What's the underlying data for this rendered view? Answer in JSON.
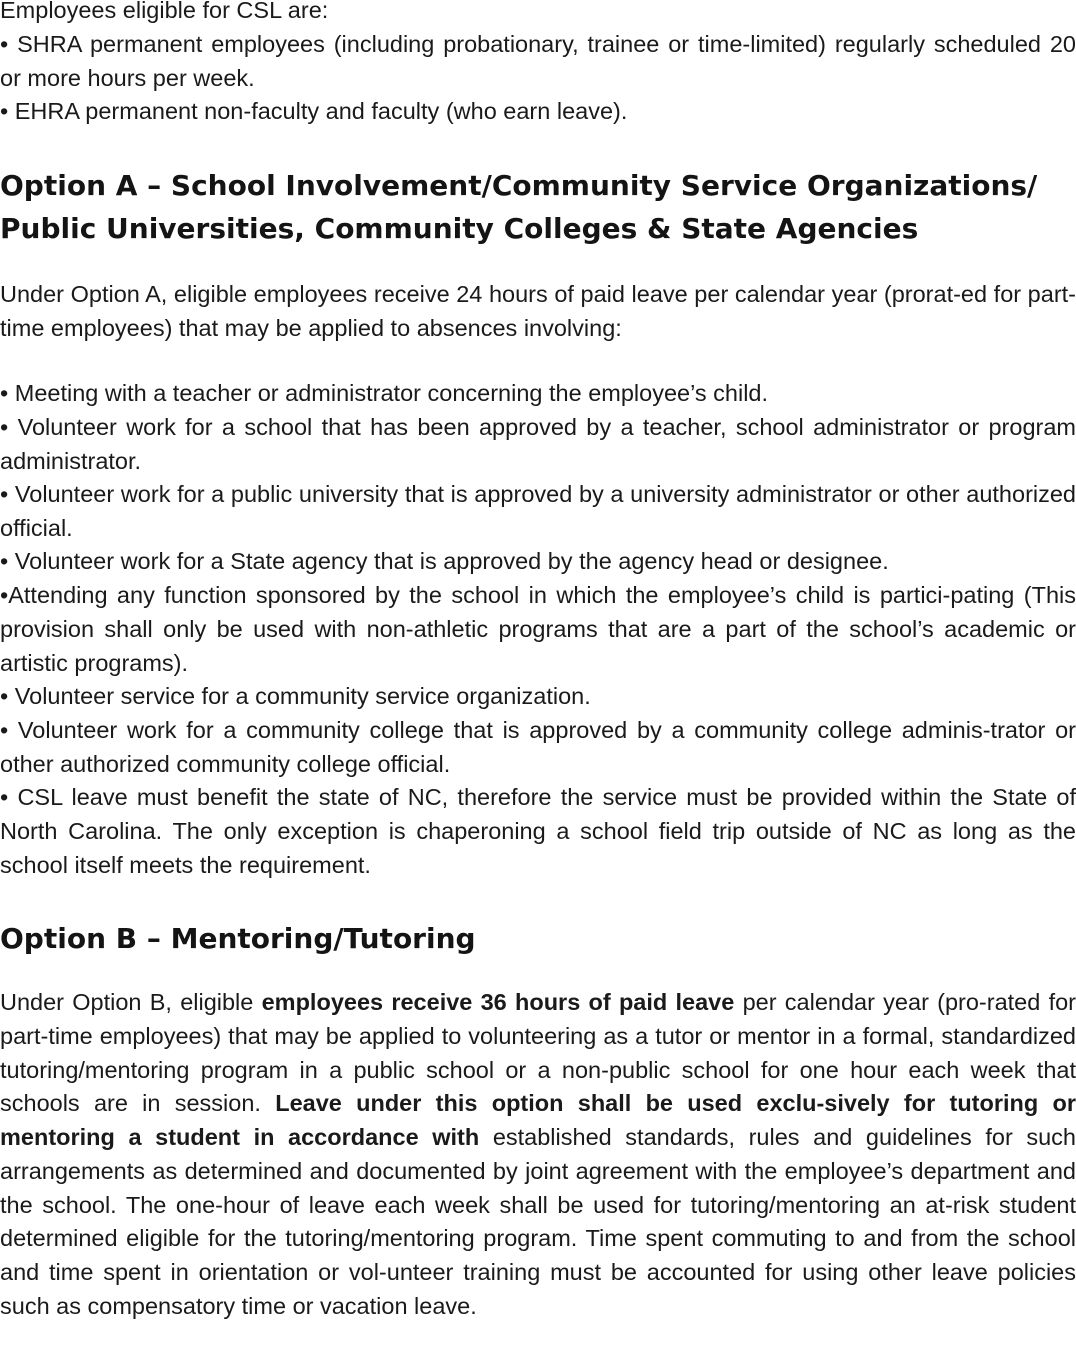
{
  "eligibility": {
    "intro": "Employees eligible for CSL are:",
    "items": [
      "• SHRA permanent employees (including probationary, trainee or time-limited) regularly scheduled 20 or more hours per week.",
      "• EHRA permanent non-faculty and faculty (who earn leave)."
    ]
  },
  "option_a": {
    "heading_line1": "Option A – School Involvement/Community Service Organizations/",
    "heading_line2": "Public Universities, Community Colleges & State Agencies",
    "intro": "Under Option A, eligible employees receive 24 hours of paid leave per calendar year (prorat-ed for part-time employees) that may be applied to absences involving:",
    "items": [
      "• Meeting with a teacher or administrator concerning the employee’s child.",
      "• Volunteer work for a school that has been approved by a teacher, school administrator or program administrator.",
      "• Volunteer work for a public university that is approved by a university administrator or other authorized official.",
      "• Volunteer work for a State agency that is approved by the agency head or designee.",
      "•Attending any function sponsored by the school in which the employee’s child is partici-pating (This provision shall only be used with non-athletic programs that are a part of the school’s academic or artistic programs).",
      "• Volunteer service for a community service organization.",
      "• Volunteer work for a community college that is approved by a community college adminis-trator or other authorized community college official.",
      "• CSL leave must benefit the state of NC, therefore the service must be provided within the State of North Carolina. The only exception is chaperoning a school field trip outside of NC as long as the school itself meets the requirement."
    ]
  },
  "option_b": {
    "heading": "Option B – Mentoring/Tutoring",
    "seg1": "Under Option B, eligible ",
    "seg2_bold": "employees receive 36 hours of paid leave",
    "seg3": " per calendar year (pro-rated for part-time employees) that may be applied to volunteering as a tutor or mentor in a formal, standardized tutoring/mentoring program in a public school or a non-public school for one hour each week that schools are in session. ",
    "seg4_bold": "Leave under this option shall be used exclu-sively for tutoring or mentoring a student in accordance with",
    "seg5": " established standards, rules and guidelines for such arrangements as determined and documented by joint agreement with the employee’s department and the school. The one-hour of leave each week shall be used for tutoring/mentoring an at-risk student determined eligible for the tutoring/mentoring program. Time spent commuting to and from the school and time spent in orientation or vol-unteer training must be accounted for using other leave policies such as compensatory time or vacation leave."
  }
}
